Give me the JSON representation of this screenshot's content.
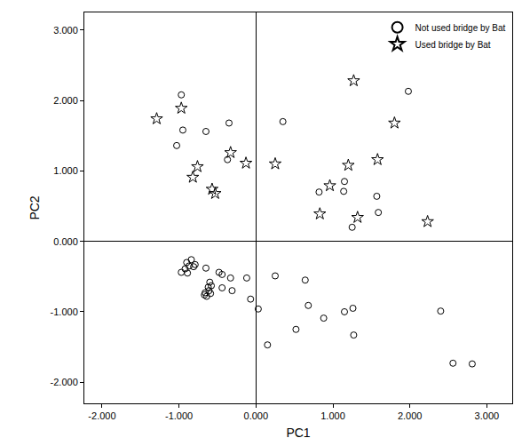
{
  "chart_data": {
    "type": "scatter",
    "x_label": "PC1",
    "y_label": "PC2",
    "xlim": [
      -2.23,
      3.33
    ],
    "ylim": [
      -2.3,
      3.25
    ],
    "xticks": [
      {
        "value": -2,
        "label": "-2.000"
      },
      {
        "value": -1,
        "label": "-1.000"
      },
      {
        "value": 0,
        "label": "0.000"
      },
      {
        "value": 1,
        "label": "1.000"
      },
      {
        "value": 2,
        "label": "2.000"
      },
      {
        "value": 3,
        "label": "3.000"
      }
    ],
    "yticks": [
      {
        "value": -2,
        "label": "-2.000"
      },
      {
        "value": -1,
        "label": "-1.000"
      },
      {
        "value": 0,
        "label": "0.000"
      },
      {
        "value": 1,
        "label": "1.000"
      },
      {
        "value": 2,
        "label": "2.000"
      },
      {
        "value": 3,
        "label": "3.000"
      }
    ],
    "grid": false,
    "legend": "upper right",
    "series": [
      {
        "name": "Not used bridge by Bat",
        "color": "#000000",
        "marker": "circle-open",
        "x": [
          -0.97,
          -0.95,
          -1.03,
          -0.65,
          -0.35,
          -0.37,
          0.35,
          1.98,
          1.14,
          0.82,
          1.15,
          1.57,
          1.59,
          1.25,
          -0.87,
          -0.9,
          -0.84,
          -0.92,
          -0.97,
          -0.89,
          -0.81,
          -0.79,
          -0.65,
          -0.48,
          -0.44,
          -0.33,
          -0.6,
          -0.62,
          -0.58,
          -0.66,
          -0.64,
          -0.67,
          -0.61,
          -0.59,
          -0.44,
          -0.31,
          -0.12,
          -0.07,
          0.03,
          0.25,
          0.64,
          0.68,
          0.88,
          1.15,
          1.26,
          0.52,
          0.15,
          1.27,
          2.4,
          2.56,
          2.81
        ],
        "y": [
          2.08,
          1.58,
          1.36,
          1.56,
          1.68,
          1.16,
          1.7,
          2.13,
          0.71,
          0.7,
          0.85,
          0.64,
          0.41,
          0.2,
          -0.35,
          -0.3,
          -0.26,
          -0.39,
          -0.44,
          -0.45,
          -0.36,
          -0.33,
          -0.38,
          -0.44,
          -0.47,
          -0.52,
          -0.58,
          -0.65,
          -0.63,
          -0.73,
          -0.78,
          -0.76,
          -0.7,
          -0.74,
          -0.66,
          -0.7,
          -0.52,
          -0.82,
          -0.96,
          -0.49,
          -0.55,
          -0.91,
          -1.09,
          -1.0,
          -0.95,
          -1.25,
          -1.47,
          -1.33,
          -0.99,
          -1.73,
          -1.74
        ]
      },
      {
        "name": "Used bridge by Bat",
        "color": "#000000",
        "marker": "star-open",
        "x": [
          -1.29,
          -0.97,
          -0.76,
          -0.82,
          -0.33,
          -0.57,
          -0.53,
          -0.13,
          0.25,
          1.27,
          1.8,
          1.2,
          1.58,
          0.96,
          0.83,
          1.32,
          2.23
        ],
        "y": [
          1.74,
          1.89,
          1.06,
          0.91,
          1.26,
          0.74,
          0.68,
          1.11,
          1.1,
          2.28,
          1.68,
          1.08,
          1.16,
          0.79,
          0.39,
          0.34,
          0.28
        ]
      }
    ]
  }
}
